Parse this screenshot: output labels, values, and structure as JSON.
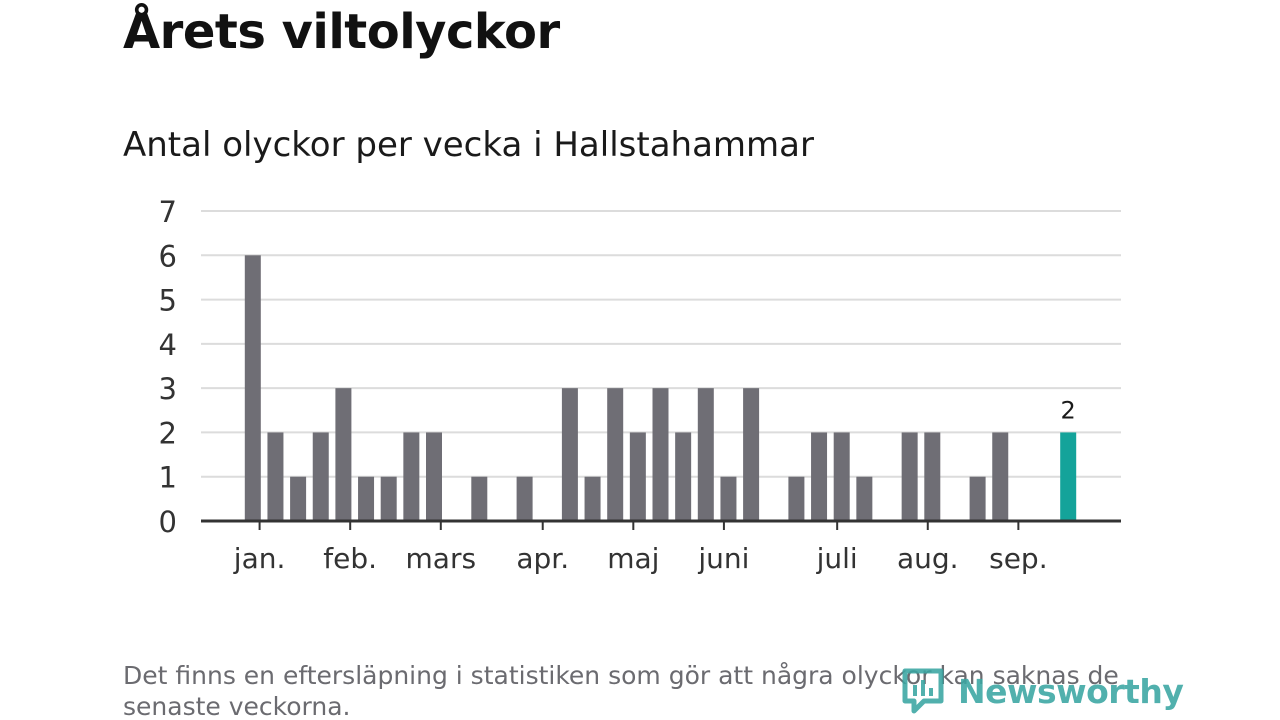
{
  "header": {
    "title": "Årets viltolyckor",
    "subtitle": "Antal olyckor per vecka i Hallstahammar"
  },
  "footnote": "Det finns en eftersläpning i statistiken som gör att några olyckor kan saknas de senaste veckorna.",
  "brand": {
    "name": "Newsworthy",
    "icon": "bar-chart-speech-bubble-icon",
    "color": "#3aa6a2"
  },
  "colors": {
    "bar": "#6f6e75",
    "highlight": "#14a39a",
    "grid": "#dcdcdc",
    "axis": "#333333"
  },
  "chart_data": {
    "type": "bar",
    "title": "Antal olyckor per vecka i Hallstahammar",
    "xlabel": "",
    "ylabel": "",
    "ylim": [
      0,
      7
    ],
    "yticks": [
      0,
      1,
      2,
      3,
      4,
      5,
      6,
      7
    ],
    "grid": true,
    "weeks": [
      1,
      2,
      3,
      4,
      5,
      6,
      7,
      8,
      9,
      10,
      11,
      12,
      13,
      14,
      15,
      16,
      17,
      18,
      19,
      20,
      21,
      22,
      23,
      24,
      25,
      26,
      27,
      28,
      29,
      30,
      31,
      32,
      33,
      34,
      35,
      36,
      37,
      38,
      39,
      40
    ],
    "values": [
      0,
      0,
      6,
      2,
      1,
      2,
      3,
      1,
      1,
      2,
      2,
      0,
      1,
      0,
      1,
      0,
      3,
      1,
      3,
      2,
      3,
      2,
      3,
      1,
      3,
      0,
      1,
      2,
      2,
      1,
      0,
      2,
      2,
      0,
      1,
      2,
      0,
      0,
      2,
      0
    ],
    "highlight_index": 38,
    "highlight_label": "2",
    "month_labels": [
      {
        "label": "jan.",
        "week": 3.3
      },
      {
        "label": "feb.",
        "week": 7.3
      },
      {
        "label": "mars",
        "week": 11.3
      },
      {
        "label": "apr.",
        "week": 15.8
      },
      {
        "label": "maj",
        "week": 19.8
      },
      {
        "label": "juni",
        "week": 23.8
      },
      {
        "label": "juli",
        "week": 28.8
      },
      {
        "label": "aug.",
        "week": 32.8
      },
      {
        "label": "sep.",
        "week": 36.8
      }
    ]
  }
}
